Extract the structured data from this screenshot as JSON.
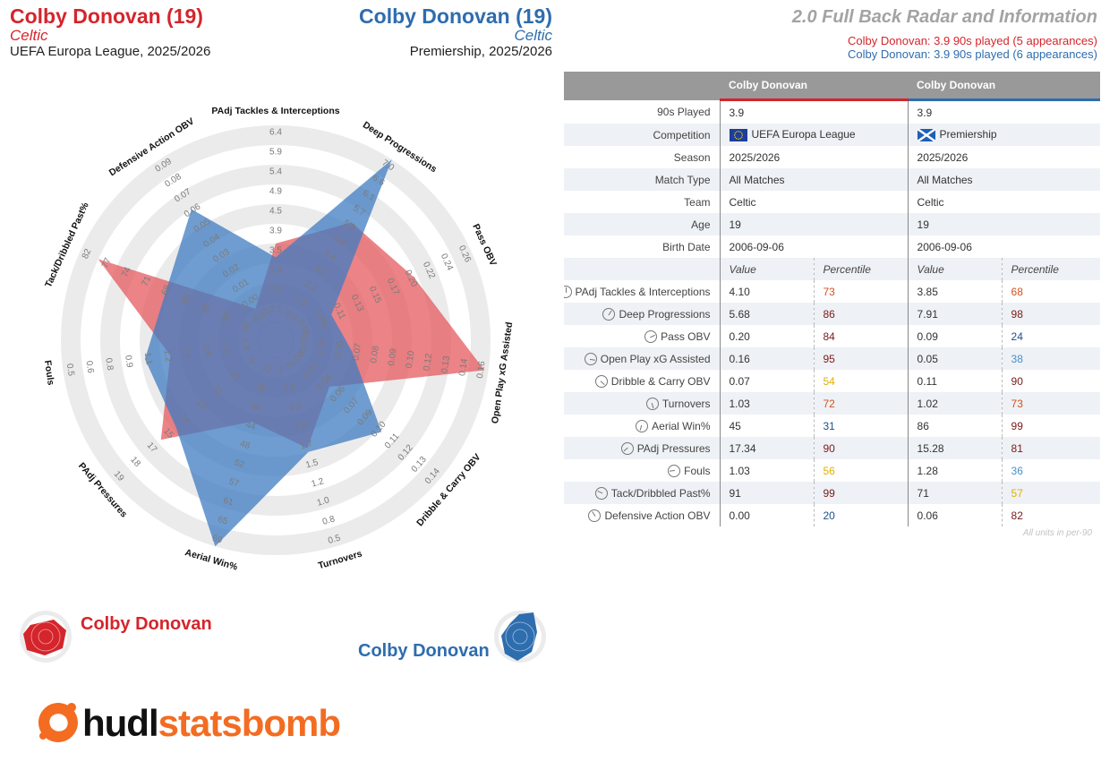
{
  "header": {
    "left": {
      "name": "Colby Donovan (19)",
      "club": "Celtic",
      "competition": "UEFA Europa League, 2025/2026"
    },
    "right": {
      "name": "Colby Donovan (19)",
      "club": "Celtic",
      "competition": "Premiership, 2025/2026"
    },
    "title": "2.0 Full Back Radar and Information",
    "played_red": "Colby Donovan: 3.9 90s played (5 appearances)",
    "played_blue": "Colby Donovan: 3.9 90s played (6 appearances)"
  },
  "colors": {
    "red": "#d4252c",
    "blue": "#2e6dae",
    "red_fill": "#e45a5f",
    "blue_fill": "#3f7cc1",
    "ring": "#ebebeb"
  },
  "legend": {
    "red_name": "Colby Donovan",
    "blue_name": "Colby Donovan"
  },
  "logo": {
    "part1": "hudl",
    "part2": "statsbomb",
    "icon": "statsbomb-logo-icon"
  },
  "units_note": "All units in per-90",
  "table": {
    "headers": [
      "",
      "Colby Donovan",
      "",
      "Colby Donovan",
      ""
    ],
    "info_rows": [
      {
        "label": "90s Played",
        "v1": "3.9",
        "v2": "3.9"
      },
      {
        "label": "Competition",
        "v1": "UEFA Europa League",
        "v2": "Premiership",
        "flag1": "eu-flag-icon",
        "flag2": "scotland-flag-icon"
      },
      {
        "label": "Season",
        "v1": "2025/2026",
        "v2": "2025/2026"
      },
      {
        "label": "Match Type",
        "v1": "All Matches",
        "v2": "All Matches"
      },
      {
        "label": "Team",
        "v1": "Celtic",
        "v2": "Celtic"
      },
      {
        "label": "Age",
        "v1": "19",
        "v2": "19"
      },
      {
        "label": "Birth Date",
        "v1": "2006-09-06",
        "v2": "2006-09-06"
      }
    ],
    "sub_headers": {
      "value": "Value",
      "percentile": "Percentile"
    },
    "metric_rows": [
      {
        "label": "PAdj Tackles & Interceptions",
        "v1": "4.10",
        "p1": "73",
        "v2": "3.85",
        "p2": "68"
      },
      {
        "label": "Deep Progressions",
        "v1": "5.68",
        "p1": "86",
        "v2": "7.91",
        "p2": "98"
      },
      {
        "label": "Pass OBV",
        "v1": "0.20",
        "p1": "84",
        "v2": "0.09",
        "p2": "24"
      },
      {
        "label": "Open Play xG Assisted",
        "v1": "0.16",
        "p1": "95",
        "v2": "0.05",
        "p2": "38"
      },
      {
        "label": "Dribble & Carry OBV",
        "v1": "0.07",
        "p1": "54",
        "v2": "0.11",
        "p2": "90"
      },
      {
        "label": "Turnovers",
        "v1": "1.03",
        "p1": "72",
        "v2": "1.02",
        "p2": "73"
      },
      {
        "label": "Aerial Win%",
        "v1": "45",
        "p1": "31",
        "v2": "86",
        "p2": "99"
      },
      {
        "label": "PAdj Pressures",
        "v1": "17.34",
        "p1": "90",
        "v2": "15.28",
        "p2": "81"
      },
      {
        "label": "Fouls",
        "v1": "1.03",
        "p1": "56",
        "v2": "1.28",
        "p2": "36"
      },
      {
        "label": "Tack/Dribbled Past%",
        "v1": "91",
        "p1": "99",
        "v2": "71",
        "p2": "57"
      },
      {
        "label": "Defensive Action OBV",
        "v1": "0.00",
        "p1": "20",
        "v2": "0.06",
        "p2": "82"
      }
    ]
  },
  "chart_data": {
    "type": "radar",
    "axes": [
      {
        "label": "PAdj Tackles & Interceptions",
        "ticks": [
          "2.1",
          "2.5",
          "3.0",
          "3.5",
          "3.9",
          "4.5",
          "4.9",
          "5.4",
          "5.9",
          "6.4"
        ]
      },
      {
        "label": "Deep Progressions",
        "ticks": [
          "0.0",
          "1.5",
          "2.2",
          "3.0",
          "4.4",
          "4.8",
          "5.3",
          "5.7",
          "6.1",
          "6.6",
          "7.0"
        ]
      },
      {
        "label": "Pass OBV",
        "ticks": [
          "0.06",
          "0.09",
          "0.11",
          "0.13",
          "0.15",
          "0.17",
          "0.20",
          "0.22",
          "0.24",
          "0.26"
        ]
      },
      {
        "label": "Open Play xG Assisted",
        "ticks": [
          "0.03",
          "0.04",
          "0.06",
          "0.07",
          "0.08",
          "0.09",
          "0.10",
          "0.12",
          "0.13",
          "0.14",
          "0.16"
        ]
      },
      {
        "label": "Dribble & Carry OBV",
        "ticks": [
          "0.00",
          "0.02",
          "0.04",
          "0.06",
          "0.07",
          "0.09",
          "0.10",
          "0.11",
          "0.12",
          "0.13",
          "0.14"
        ]
      },
      {
        "label": "Turnovers",
        "ticks": [
          "2.7",
          "2.4",
          "2.2",
          "2.0",
          "1.7",
          "1.5",
          "1.2",
          "1.0",
          "0.8",
          "0.5"
        ]
      },
      {
        "label": "Aerial Win%",
        "ticks": [
          "32",
          "36",
          "40",
          "44",
          "48",
          "52",
          "57",
          "61",
          "65",
          "69"
        ]
      },
      {
        "label": "PAdj Pressures",
        "ticks": [
          "9",
          "10",
          "11",
          "13",
          "14",
          "15",
          "17",
          "18",
          "19"
        ]
      },
      {
        "label": "Fouls",
        "ticks": [
          "1.8",
          "1.6",
          "1.5",
          "1.4",
          "1.2",
          "1.1",
          "0.9",
          "0.8",
          "0.6",
          "0.5"
        ]
      },
      {
        "label": "Tack/Dribbled Past%",
        "ticks": [
          "56",
          "59",
          "62",
          "65",
          "68",
          "71",
          "74",
          "77",
          "82"
        ]
      },
      {
        "label": "Defensive Action OBV",
        "ticks": [
          "-0.01",
          "0.00",
          "0.01",
          "0.02",
          "0.03",
          "0.04",
          "0.05",
          "0.06",
          "0.07",
          "0.08",
          "0.09"
        ]
      }
    ],
    "series": [
      {
        "name": "Colby Donovan",
        "color": "#e45a5f",
        "values": [
          0.4,
          0.62,
          0.68,
          0.98,
          0.27,
          0.48,
          0.34,
          0.68,
          0.45,
          0.9,
          0.1
        ]
      },
      {
        "name": "Colby Donovan",
        "color": "#3f7cc1",
        "values": [
          0.33,
          1.0,
          0.22,
          0.3,
          0.62,
          0.5,
          1.0,
          0.58,
          0.58,
          0.52,
          0.7
        ]
      }
    ],
    "rings": 10
  }
}
